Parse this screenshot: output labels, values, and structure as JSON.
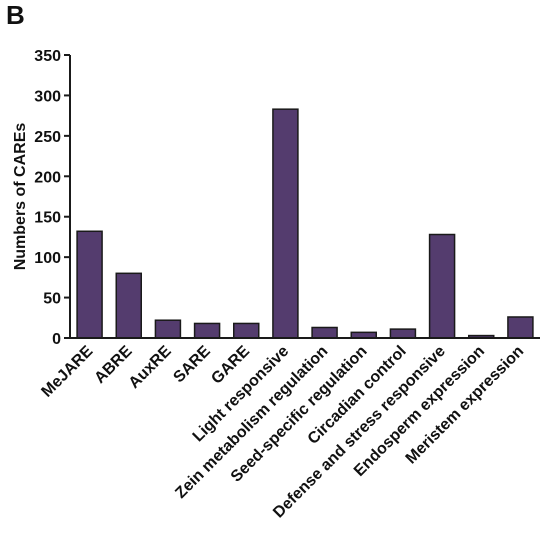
{
  "panel_label": "B",
  "colors": {
    "bar_fill": "#543c6e",
    "bar_stroke": "#1a1a1a",
    "axis": "#1a1a1a",
    "text": "#111111"
  },
  "chart_data": {
    "type": "bar",
    "title": "",
    "xlabel": "",
    "ylabel": "Numbers of CAREs",
    "ylim": [
      0,
      350
    ],
    "ytick_values": [
      0,
      50,
      100,
      150,
      200,
      250,
      300,
      350
    ],
    "ytick_labels": [
      "0",
      "50",
      "100",
      "150",
      "200",
      "250",
      "300",
      "350"
    ],
    "grid": false,
    "legend": "none",
    "categories": [
      "MeJARE",
      "ABRE",
      "AuxRE",
      "SARE",
      "GARE",
      "Light responsive",
      "Zein metabolism regulation",
      "Seed-specific regulation",
      "Circadian control",
      "Defense and stress responsive",
      "Endosperm expression",
      "Meristem expression"
    ],
    "values": [
      132,
      80,
      22,
      18,
      18,
      283,
      13,
      7,
      11,
      128,
      3,
      26
    ]
  }
}
